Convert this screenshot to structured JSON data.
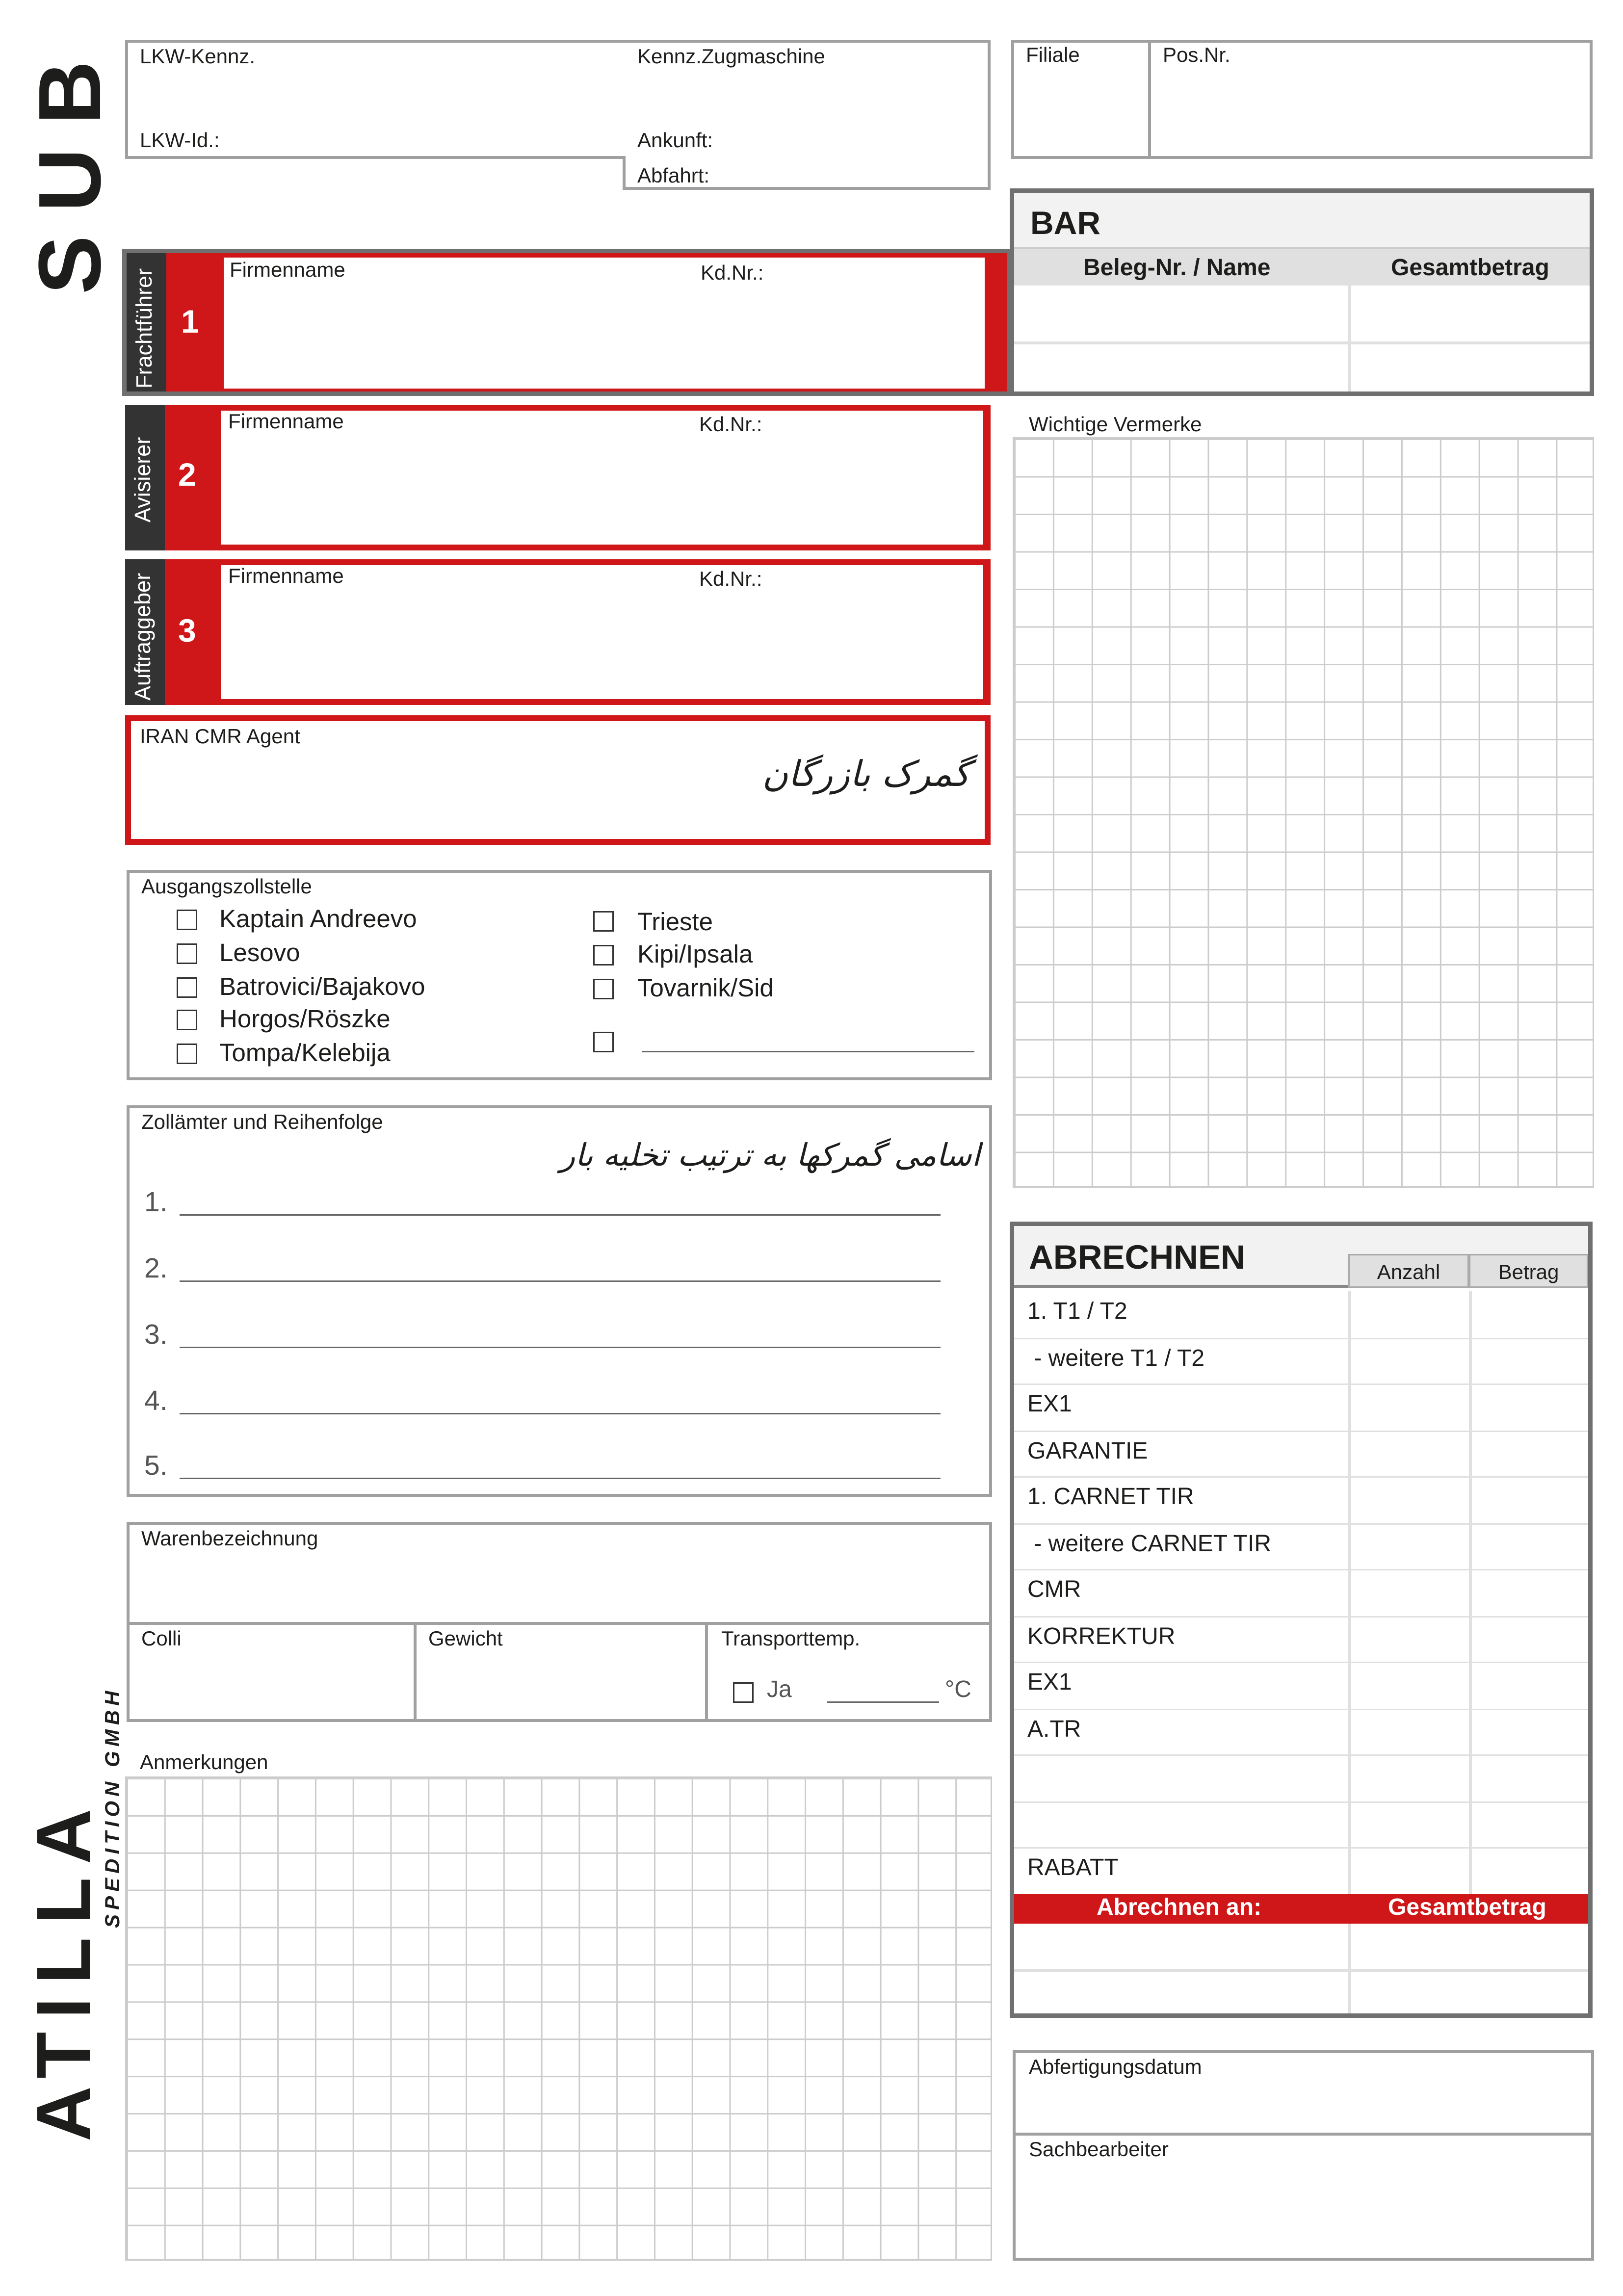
{
  "logo": {
    "sub": "SUB",
    "atilla": "ATILLA",
    "sub_text": "SPEDITION GMBH"
  },
  "top": {
    "lkw_kennz": "LKW-Kennz.",
    "kennz_zug": "Kennz.Zugmaschine",
    "lkw_id": "LKW-Id.:",
    "ankunft": "Ankunft:",
    "abfahrt": "Abfahrt:"
  },
  "filiale": {
    "filiale": "Filiale",
    "pos": "Pos.Nr."
  },
  "bar": {
    "title": "BAR",
    "col1": "Beleg-Nr. / Name",
    "col2": "Gesamtbetrag"
  },
  "parties": [
    {
      "role": "Frachtführer",
      "num": "1",
      "firm": "Firmenname",
      "kd": "Kd.Nr.:"
    },
    {
      "role": "Avisierer",
      "num": "2",
      "firm": "Firmenname",
      "kd": "Kd.Nr.:"
    },
    {
      "role": "Auftraggeber",
      "num": "3",
      "firm": "Firmenname",
      "kd": "Kd.Nr.:"
    }
  ],
  "agent": {
    "label": "IRAN CMR Agent",
    "handwriting": "گمرک بازرگان"
  },
  "zoll": {
    "title": "Ausgangszollstelle",
    "left": [
      "Kaptain Andreevo",
      "Lesovo",
      "Batrovici/Bajakovo",
      "Horgos/Röszke",
      "Tompa/Kelebija"
    ],
    "right": [
      "Trieste",
      "Kipi/Ipsala",
      "Tovarnik/Sid"
    ]
  },
  "aemter": {
    "title": "Zollämter und Reihenfolge",
    "handwriting": "اسامی گمرکها به ترتیب تخلیه بار",
    "nums": [
      "1.",
      "2.",
      "3.",
      "4.",
      "5."
    ]
  },
  "ware": {
    "title": "Warenbezeichnung",
    "colli": "Colli",
    "gewicht": "Gewicht",
    "temp": "Transporttemp.",
    "ja": "Ja",
    "unit": "°C"
  },
  "anmerkungen": "Anmerkungen",
  "vermerke": "Wichtige Vermerke",
  "abrechnen": {
    "title": "ABRECHNEN",
    "anzahl": "Anzahl",
    "betrag": "Betrag",
    "rows": [
      "1. T1 / T2",
      " - weitere T1 / T2",
      "EX1",
      "GARANTIE",
      "1. CARNET TIR",
      " - weitere CARNET TIR",
      "CMR",
      "KORREKTUR",
      "EX1",
      "A.TR",
      "",
      "",
      "RABATT"
    ],
    "footer_left": "Abrechnen an:",
    "footer_right": "Gesamtbetrag"
  },
  "bottom": {
    "datum": "Abfertigungsdatum",
    "sach": "Sachbearbeiter"
  },
  "colors": {
    "red": "#cf1719",
    "dark": "#333333",
    "gray": "#a0a0a0"
  }
}
